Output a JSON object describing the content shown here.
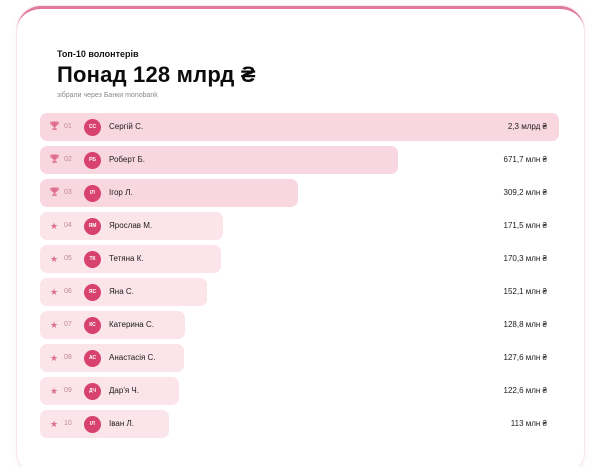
{
  "header": {
    "eyebrow": "Топ-10 волонтерів",
    "headline": "Понад 128 млрд ₴",
    "subtext": "зібрали через Банки monobank"
  },
  "colors": {
    "accent": "#d8426f",
    "bar_top": "#f9d7e1",
    "bar": "#fbe4ea",
    "icon": "#df6f92"
  },
  "volunteers": [
    {
      "rank": "01",
      "icon": "trophy-icon",
      "initials": "СС",
      "name": "Сергій С.",
      "amount": "2,3 млрд ₴",
      "share": 1.0
    },
    {
      "rank": "02",
      "icon": "trophy-icon",
      "initials": "РБ",
      "name": "Роберт Б.",
      "amount": "671,7 млн ₴",
      "share": 0.292
    },
    {
      "rank": "03",
      "icon": "trophy-icon",
      "initials": "ІЛ",
      "name": "Ігор Л.",
      "amount": "309,2 млн ₴",
      "share": 0.134
    },
    {
      "rank": "04",
      "icon": "star-icon",
      "initials": "ЯМ",
      "name": "Ярослав М.",
      "amount": "171,5 млн ₴",
      "share": 0.0746
    },
    {
      "rank": "05",
      "icon": "star-icon",
      "initials": "ТК",
      "name": "Тетяна К.",
      "amount": "170,3 млн ₴",
      "share": 0.074
    },
    {
      "rank": "06",
      "icon": "star-icon",
      "initials": "ЯС",
      "name": "Яна С.",
      "amount": "152,1 млн ₴",
      "share": 0.0661
    },
    {
      "rank": "07",
      "icon": "star-icon",
      "initials": "КС",
      "name": "Катерина С.",
      "amount": "128,8 млн ₴",
      "share": 0.056
    },
    {
      "rank": "08",
      "icon": "star-icon",
      "initials": "АС",
      "name": "Анастасія С.",
      "amount": "127,6 млн ₴",
      "share": 0.0555
    },
    {
      "rank": "09",
      "icon": "star-icon",
      "initials": "ДЧ",
      "name": "Дар'я Ч.",
      "amount": "122,6 млн ₴",
      "share": 0.0533
    },
    {
      "rank": "10",
      "icon": "star-icon",
      "initials": "ІЛ",
      "name": "Іван Л.",
      "amount": "113 млн ₴",
      "share": 0.0491
    }
  ]
}
